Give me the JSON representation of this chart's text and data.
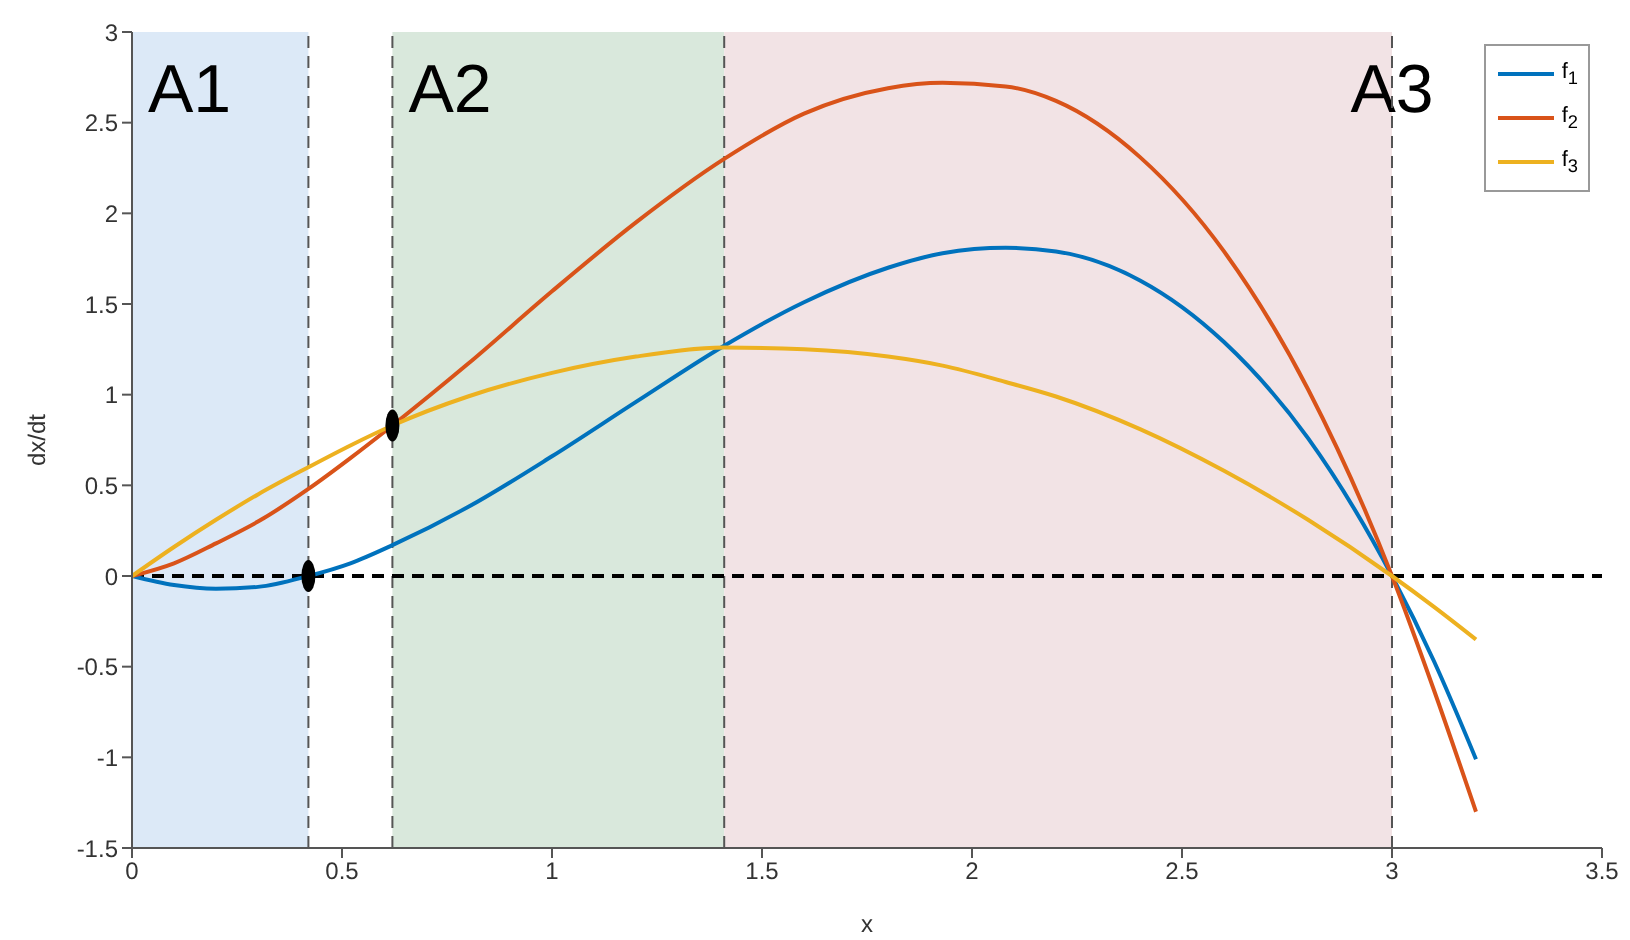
{
  "chart_data": {
    "type": "line",
    "xlabel": "x",
    "ylabel": "dx/dt",
    "x": [
      0,
      0.1,
      0.2,
      0.3,
      0.42,
      0.52,
      0.62,
      0.8,
      1,
      1.2,
      1.41,
      1.6,
      1.8,
      1.93,
      2.08,
      2.2,
      2.4,
      2.6,
      2.8,
      3,
      3.1,
      3.2
    ],
    "series": [
      {
        "name": "f$_{1}$",
        "color": "#0072bd",
        "values": [
          0,
          -0.05,
          -0.07,
          -0.06,
          0,
          0.07,
          0.17,
          0.38,
          0.66,
          0.96,
          1.27,
          1.51,
          1.7,
          1.78,
          1.81,
          1.79,
          1.63,
          1.29,
          0.76,
          0,
          -0.47,
          -1.01
        ]
      },
      {
        "name": "f$_{2}$",
        "color": "#d95319",
        "values": [
          0,
          0.07,
          0.18,
          0.3,
          0.48,
          0.65,
          0.83,
          1.17,
          1.57,
          1.95,
          2.3,
          2.55,
          2.69,
          2.72,
          2.7,
          2.62,
          2.31,
          1.79,
          1.03,
          0,
          -0.63,
          -1.3
        ]
      },
      {
        "name": "f$_{3}$",
        "color": "#edb120",
        "values": [
          0,
          0.16,
          0.31,
          0.45,
          0.6,
          0.72,
          0.83,
          0.99,
          1.12,
          1.21,
          1.26,
          1.25,
          1.21,
          1.16,
          1.07,
          0.99,
          0.81,
          0.58,
          0.31,
          0,
          -0.17,
          -0.35
        ]
      },
      {
        "type": "scatter",
        "color": "#000000",
        "x": [
          0.42,
          0.62
        ],
        "values": [
          0,
          0.83
        ]
      }
    ],
    "xlim": [
      0,
      3.5
    ],
    "xticks": [
      0,
      0.5,
      1,
      1.5,
      2,
      2.5,
      3,
      3.5
    ],
    "ylim": [
      -1.5,
      3
    ],
    "yticks": [
      -1.5,
      -1,
      -0.5,
      0,
      0.5,
      1,
      1.5,
      2,
      2.5,
      3
    ],
    "bands": [
      {
        "axis": "x",
        "from": 0,
        "to": 0.42,
        "label": "A1",
        "color": "#dce9f7"
      },
      {
        "axis": "x",
        "from": 0.62,
        "to": 1.41,
        "label": "A2",
        "color": "#d9e8dc"
      },
      {
        "axis": "x",
        "from": 1.41,
        "to": 3,
        "label": "A3",
        "color": "#f2e3e5"
      }
    ],
    "ref_lines": [
      {
        "axis": "x",
        "value": 0.42,
        "color": "#555555",
        "line_style": "dashed"
      },
      {
        "axis": "x",
        "value": 0.62,
        "color": "#555555",
        "line_style": "dashed"
      },
      {
        "axis": "x",
        "value": 1.41,
        "color": "#555555",
        "line_style": "dashed"
      },
      {
        "axis": "x",
        "value": 3,
        "color": "#555555",
        "line_style": "dashed"
      },
      {
        "axis": "y",
        "value": 0,
        "color": "#000000",
        "line_style": "dashed"
      }
    ],
    "legend": "top right",
    "line_style": "solid",
    "grid": false
  }
}
